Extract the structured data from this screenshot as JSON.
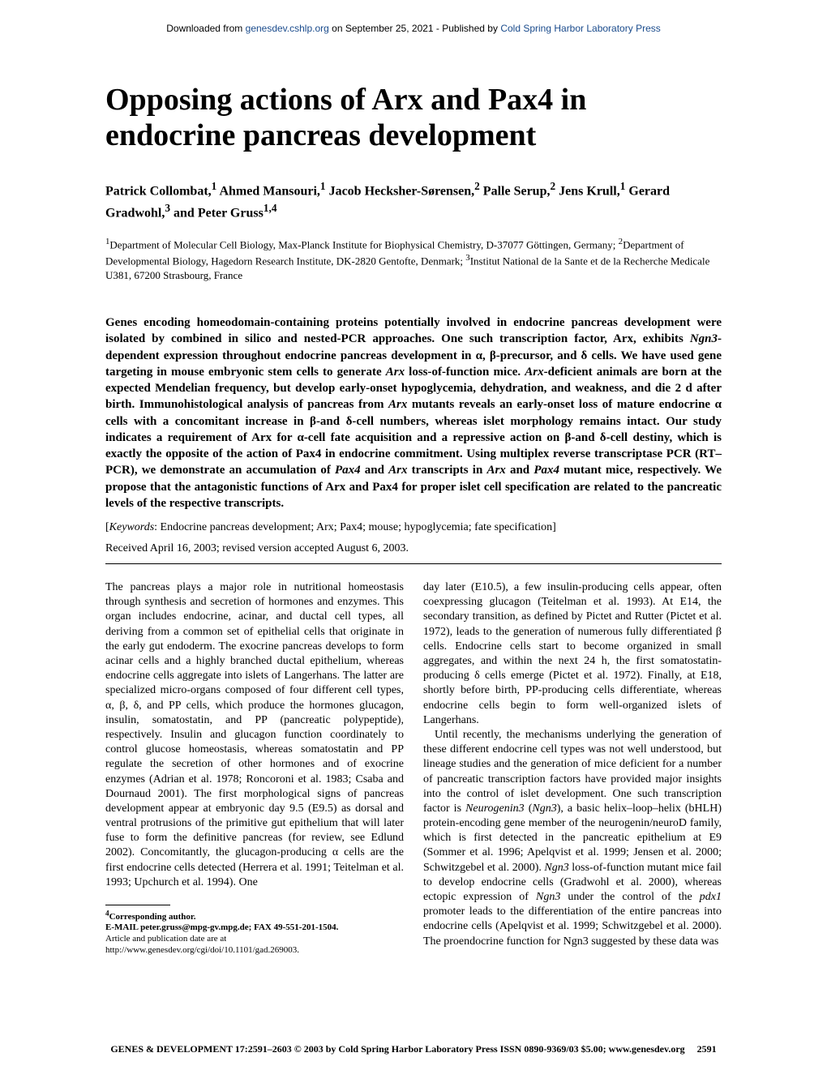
{
  "header": {
    "prefix": "Downloaded from ",
    "link1": "genesdev.cshlp.org",
    "middle": " on September 25, 2021 - Published by ",
    "link2": "Cold Spring Harbor Laboratory Press"
  },
  "title": "Opposing actions of Arx and Pax4 in endocrine pancreas development",
  "authors_html": "Patrick Collombat,<sup>1</sup> Ahmed Mansouri,<sup>1</sup> Jacob Hecksher-Sørensen,<sup>2</sup> Palle Serup,<sup>2</sup> Jens Krull,<sup>1</sup> Gerard Gradwohl,<sup>3</sup> and Peter Gruss<sup>1,4</sup>",
  "affiliations_html": "<sup>1</sup>Department of Molecular Cell Biology, Max-Planck Institute for Biophysical Chemistry, D-37077 Göttingen, Germany; <sup>2</sup>Department of Developmental Biology, Hagedorn Research Institute, DK-2820 Gentofte, Denmark; <sup>3</sup>Institut National de la Sante et de la Recherche Medicale U381, 67200 Strasbourg, France",
  "abstract_html": "Genes encoding homeodomain-containing proteins potentially involved in endocrine pancreas development were isolated by combined in silico and nested-PCR approaches. One such transcription factor, Arx, exhibits <span class=\"italic\">Ngn3</span>-dependent expression throughout endocrine pancreas development in α, β-precursor, and δ cells. We have used gene targeting in mouse embryonic stem cells to generate <span class=\"italic\">Arx</span> loss-of-function mice. <span class=\"italic\">Arx</span>-deficient animals are born at the expected Mendelian frequency, but develop early-onset hypoglycemia, dehydration, and weakness, and die 2 d after birth. Immunohistological analysis of pancreas from <span class=\"italic\">Arx</span> mutants reveals an early-onset loss of mature endocrine α cells with a concomitant increase in β-and δ-cell numbers, whereas islet morphology remains intact. Our study indicates a requirement of Arx for α-cell fate acquisition and a repressive action on β-and δ-cell destiny, which is exactly the opposite of the action of Pax4 in endocrine commitment. Using multiplex reverse transcriptase PCR (RT–PCR), we demonstrate an accumulation of <span class=\"italic\">Pax4</span> and <span class=\"italic\">Arx</span> transcripts in <span class=\"italic\">Arx</span> and <span class=\"italic\">Pax4</span> mutant mice, respectively. We propose that the antagonistic functions of Arx and Pax4 for proper islet cell specification are related to the pancreatic levels of the respective transcripts.",
  "keywords_html": "[<span class=\"italic\">Keywords</span>: Endocrine pancreas development; Arx; Pax4; mouse; hypoglycemia; fate specification]",
  "received": "Received April 16, 2003; revised version accepted August 6, 2003.",
  "body_p1": "The pancreas plays a major role in nutritional homeostasis through synthesis and secretion of hormones and enzymes. This organ includes endocrine, acinar, and ductal cell types, all deriving from a common set of epithelial cells that originate in the early gut endoderm. The exocrine pancreas develops to form acinar cells and a highly branched ductal epithelium, whereas endocrine cells aggregate into islets of Langerhans. The latter are specialized micro-organs composed of four different cell types, α, β, δ, and PP cells, which produce the hormones glucagon, insulin, somatostatin, and PP (pancreatic polypeptide), respectively. Insulin and glucagon function coordinately to control glucose homeostasis, whereas somatostatin and PP regulate the secretion of other hormones and of exocrine enzymes (Adrian et al. 1978; Roncoroni et al. 1983; Csaba and Dournaud 2001). The first morphological signs of pancreas development appear at embryonic day 9.5 (E9.5) as dorsal and ventral protrusions of the primitive gut epithelium that will later fuse to form the definitive pancreas (for review, see Edlund 2002). Concomitantly, the glucagon-producing α cells are the first endocrine cells detected (Herrera et al. 1991; Teitelman et al. 1993; Upchurch et al. 1994). One",
  "body_p2": "day later (E10.5), a few insulin-producing cells appear, often coexpressing glucagon (Teitelman et al. 1993). At E14, the secondary transition, as defined by Pictet and Rutter (Pictet et al. 1972), leads to the generation of numerous fully differentiated β cells. Endocrine cells start to become organized in small aggregates, and within the next 24 h, the first somatostatin-producing δ cells emerge (Pictet et al. 1972). Finally, at E18, shortly before birth, PP-producing cells differentiate, whereas endocrine cells begin to form well-organized islets of Langerhans.",
  "body_p3_html": "Until recently, the mechanisms underlying the generation of these different endocrine cell types was not well understood, but lineage studies and the generation of mice deficient for a number of pancreatic transcription factors have provided major insights into the control of islet development. One such transcription factor is <span class=\"italic\">Neurogenin3</span> (<span class=\"italic\">Ngn3</span>), a basic helix–loop–helix (bHLH) protein-encoding gene member of the neurogenin/neuroD family, which is first detected in the pancreatic epithelium at E9 (Sommer et al. 1996; Apelqvist et al. 1999; Jensen et al. 2000; Schwitzgebel et al. 2000). <span class=\"italic\">Ngn3</span> loss-of-function mutant mice fail to develop endocrine cells (Gradwohl et al. 2000), whereas ectopic expression of <span class=\"italic\">Ngn3</span> under the control of the <span class=\"italic\">pdx1</span> promoter leads to the differentiation of the entire pancreas into endocrine cells (Apelqvist et al. 1999; Schwitzgebel et al. 2000). The proendocrine function for Ngn3 suggested by these data was",
  "footnotes": {
    "corresponding": "4Corresponding author.",
    "email": "E-MAIL peter.gruss@mpg-gv.mpg.de; FAX 49-551-201-1504.",
    "article": "Article and publication date are at http://www.genesdev.org/cgi/doi/10.1101/gad.269003."
  },
  "footer": {
    "left": "GENES & DEVELOPMENT 17:2591–2603 © 2003 by Cold Spring Harbor Laboratory Press ISSN 0890-9369/03 $5.00; www.genesdev.org",
    "page": "2591"
  }
}
